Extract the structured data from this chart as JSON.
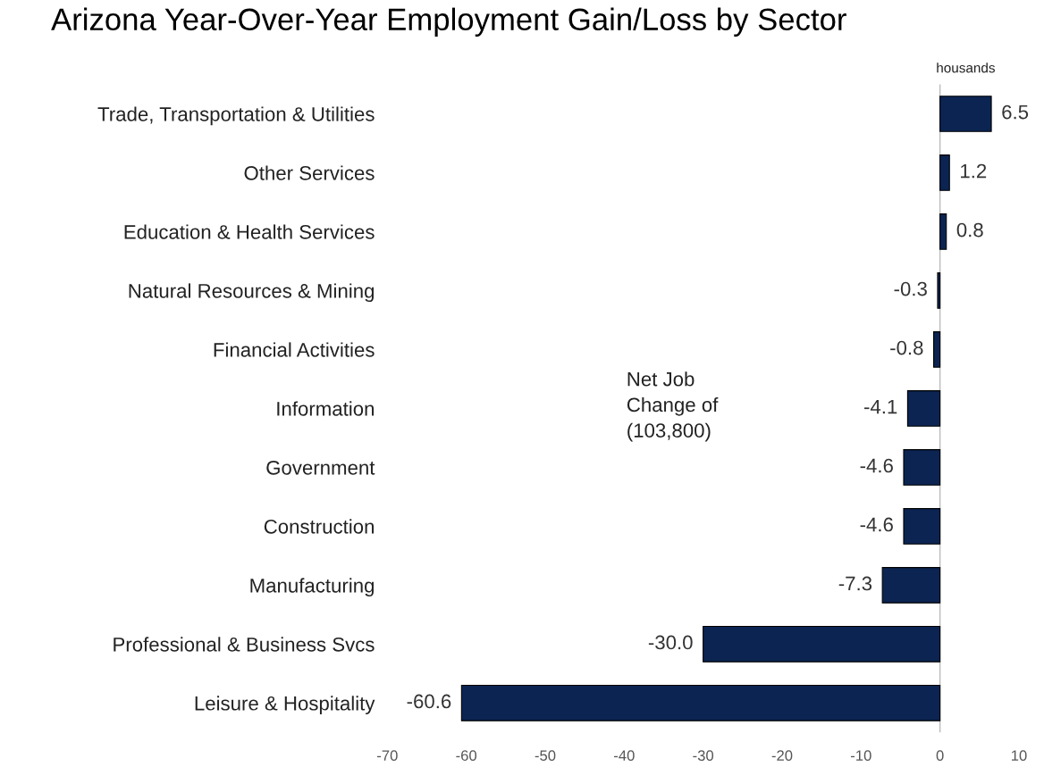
{
  "chart_data": {
    "type": "bar",
    "orientation": "horizontal",
    "title": "Arizona Year-Over-Year Employment Gain/Loss by Sector",
    "categories": [
      "Trade, Transportation & Utilities",
      "Other Services",
      "Education & Health Services",
      "Natural Resources & Mining",
      "Financial Activities",
      "Information",
      "Government",
      "Construction",
      "Manufacturing",
      "Professional & Business Svcs",
      "Leisure & Hospitality"
    ],
    "values": [
      6.5,
      1.2,
      0.8,
      -0.3,
      -0.8,
      -4.1,
      -4.6,
      -4.6,
      -7.3,
      -30.0,
      -60.6
    ],
    "value_labels": [
      "6.5",
      "1.2",
      "0.8",
      "-0.3",
      "-0.8",
      "-4.1",
      "-4.6",
      "-4.6",
      "-7.3",
      "-30.0",
      "-60.6"
    ],
    "color": "#0b2452",
    "xlim": [
      -70,
      10
    ],
    "xticks": [
      -70,
      -60,
      -50,
      -40,
      -30,
      -20,
      -10,
      0,
      10
    ],
    "annotations": [
      "housands",
      "Net Job\nChange of\n(103,800)"
    ],
    "ref_lines": [
      {
        "axis": "x",
        "value": 0,
        "color": "#bbbbbb"
      }
    ],
    "legend": false
  }
}
